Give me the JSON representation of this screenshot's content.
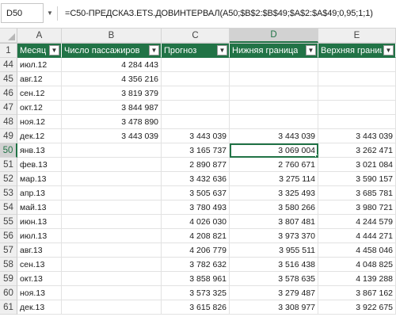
{
  "formula_bar": {
    "name_box": "D50",
    "formula": "=C50-ПРЕДСКАЗ.ETS.ДОВИНТЕРВАЛ(A50;$B$2:$B$49;$A$2:$A$49;0,95;1;1)"
  },
  "columns": [
    "A",
    "B",
    "C",
    "D",
    "E"
  ],
  "selected_column": "D",
  "headers": [
    "Месяц",
    "Число пассажиров",
    "Прогноз",
    "Нижняя граница",
    "Верхняя граница"
  ],
  "rows": [
    {
      "n": "44",
      "a": "июл.12",
      "b": "4 284 443",
      "c": "",
      "d": "",
      "e": ""
    },
    {
      "n": "45",
      "a": "авг.12",
      "b": "4 356 216",
      "c": "",
      "d": "",
      "e": ""
    },
    {
      "n": "46",
      "a": "сен.12",
      "b": "3 819 379",
      "c": "",
      "d": "",
      "e": ""
    },
    {
      "n": "47",
      "a": "окт.12",
      "b": "3 844 987",
      "c": "",
      "d": "",
      "e": ""
    },
    {
      "n": "48",
      "a": "ноя.12",
      "b": "3 478 890",
      "c": "",
      "d": "",
      "e": ""
    },
    {
      "n": "49",
      "a": "дек.12",
      "b": "3 443 039",
      "c": "3 443 039",
      "d": "3 443 039",
      "e": "3 443 039"
    },
    {
      "n": "50",
      "a": "янв.13",
      "b": "",
      "c": "3 165 737",
      "d": "3 069 004",
      "e": "3 262 471"
    },
    {
      "n": "51",
      "a": "фев.13",
      "b": "",
      "c": "2 890 877",
      "d": "2 760 671",
      "e": "3 021 084"
    },
    {
      "n": "52",
      "a": "мар.13",
      "b": "",
      "c": "3 432 636",
      "d": "3 275 114",
      "e": "3 590 157"
    },
    {
      "n": "53",
      "a": "апр.13",
      "b": "",
      "c": "3 505 637",
      "d": "3 325 493",
      "e": "3 685 781"
    },
    {
      "n": "54",
      "a": "май.13",
      "b": "",
      "c": "3 780 493",
      "d": "3 580 266",
      "e": "3 980 721"
    },
    {
      "n": "55",
      "a": "июн.13",
      "b": "",
      "c": "4 026 030",
      "d": "3 807 481",
      "e": "4 244 579"
    },
    {
      "n": "56",
      "a": "июл.13",
      "b": "",
      "c": "4 208 821",
      "d": "3 973 370",
      "e": "4 444 271"
    },
    {
      "n": "57",
      "a": "авг.13",
      "b": "",
      "c": "4 206 779",
      "d": "3 955 511",
      "e": "4 458 046"
    },
    {
      "n": "58",
      "a": "сен.13",
      "b": "",
      "c": "3 782 632",
      "d": "3 516 438",
      "e": "4 048 825"
    },
    {
      "n": "59",
      "a": "окт.13",
      "b": "",
      "c": "3 858 961",
      "d": "3 578 635",
      "e": "4 139 288"
    },
    {
      "n": "60",
      "a": "ноя.13",
      "b": "",
      "c": "3 573 325",
      "d": "3 279 487",
      "e": "3 867 162"
    },
    {
      "n": "61",
      "a": "дек.13",
      "b": "",
      "c": "3 615 826",
      "d": "3 308 977",
      "e": "3 922 675"
    }
  ],
  "active_cell": {
    "row": "50",
    "col": "D"
  },
  "icons": {
    "name_box_dropdown": "chevron-down-icon",
    "filter_dropdown": "filter-dropdown-icon",
    "select_all": "select-all-corner-icon"
  }
}
